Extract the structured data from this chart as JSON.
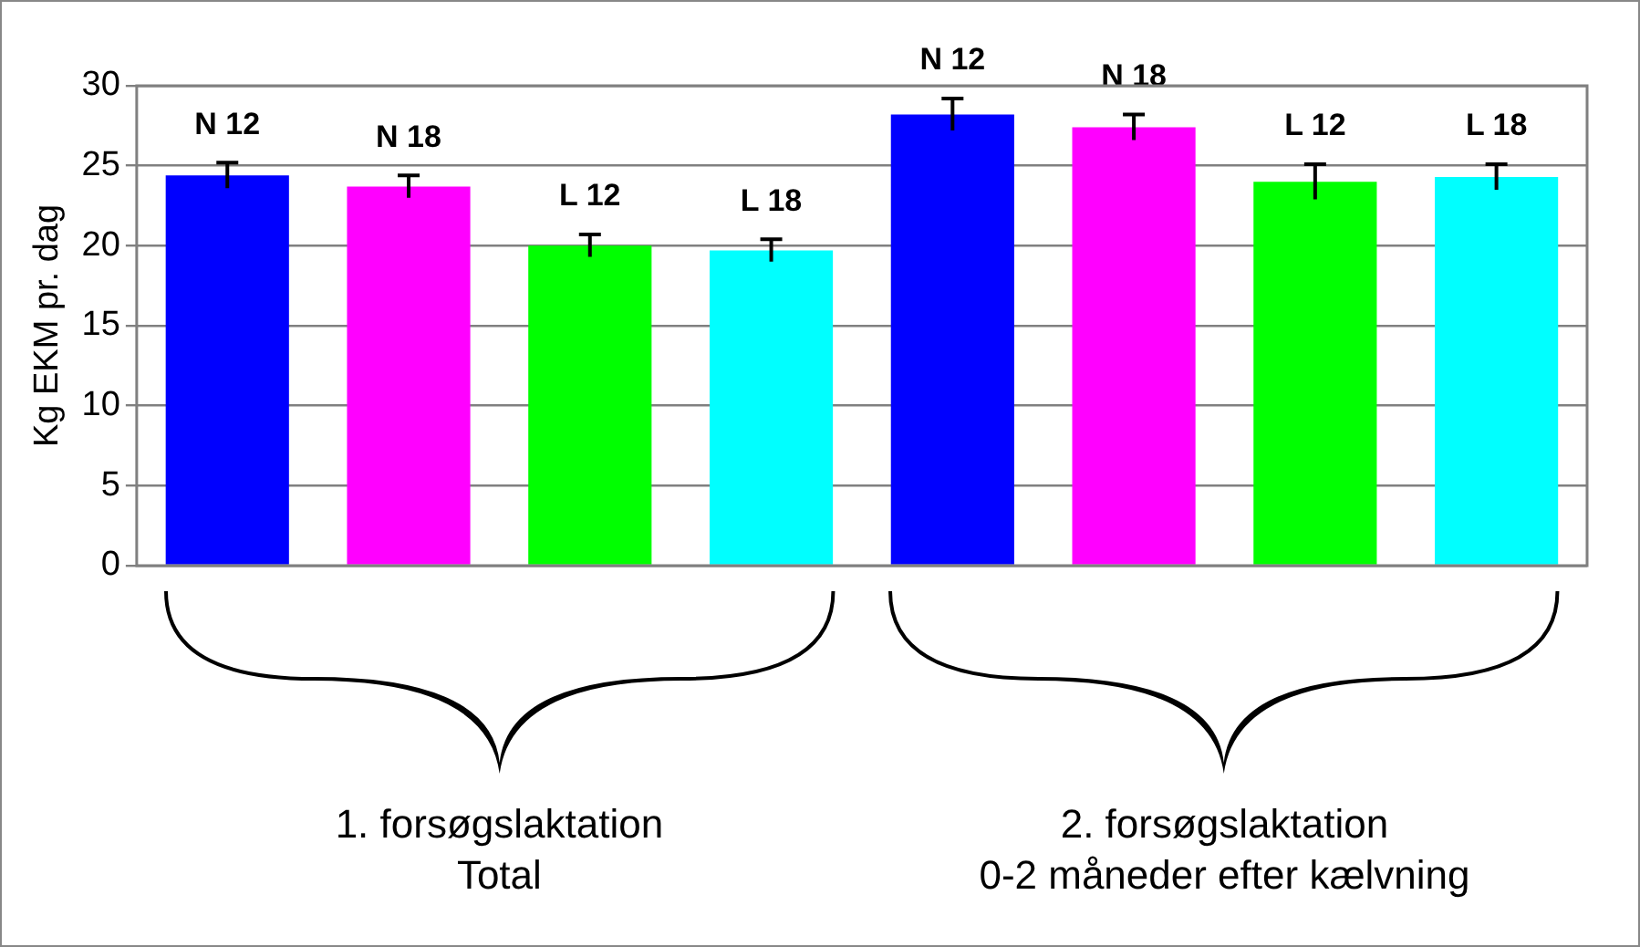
{
  "chart_data": {
    "type": "bar",
    "ylabel": "Kg EKM pr. dag",
    "categories": [
      "N 12",
      "N 18",
      "L 12",
      "L 18",
      "N 12",
      "N 18",
      "L 12",
      "L 18"
    ],
    "values": [
      24.4,
      23.7,
      20.0,
      19.7,
      28.2,
      27.4,
      24.0,
      24.3
    ],
    "errors": [
      0.8,
      0.7,
      0.7,
      0.7,
      1.0,
      0.8,
      1.1,
      0.8
    ],
    "colors": [
      "#0000ff",
      "#ff00ff",
      "#00ff00",
      "#00ffff",
      "#0000ff",
      "#ff00ff",
      "#00ff00",
      "#00ffff"
    ],
    "ylim": [
      0,
      30
    ],
    "yticks": [
      0,
      5,
      10,
      15,
      20,
      25,
      30
    ],
    "grid": "y",
    "legend": false,
    "annotations": [
      "1. forsøgslaktation\nTotal",
      "2. forsøgslaktation\n0-2 måneder efter kælvning"
    ]
  }
}
